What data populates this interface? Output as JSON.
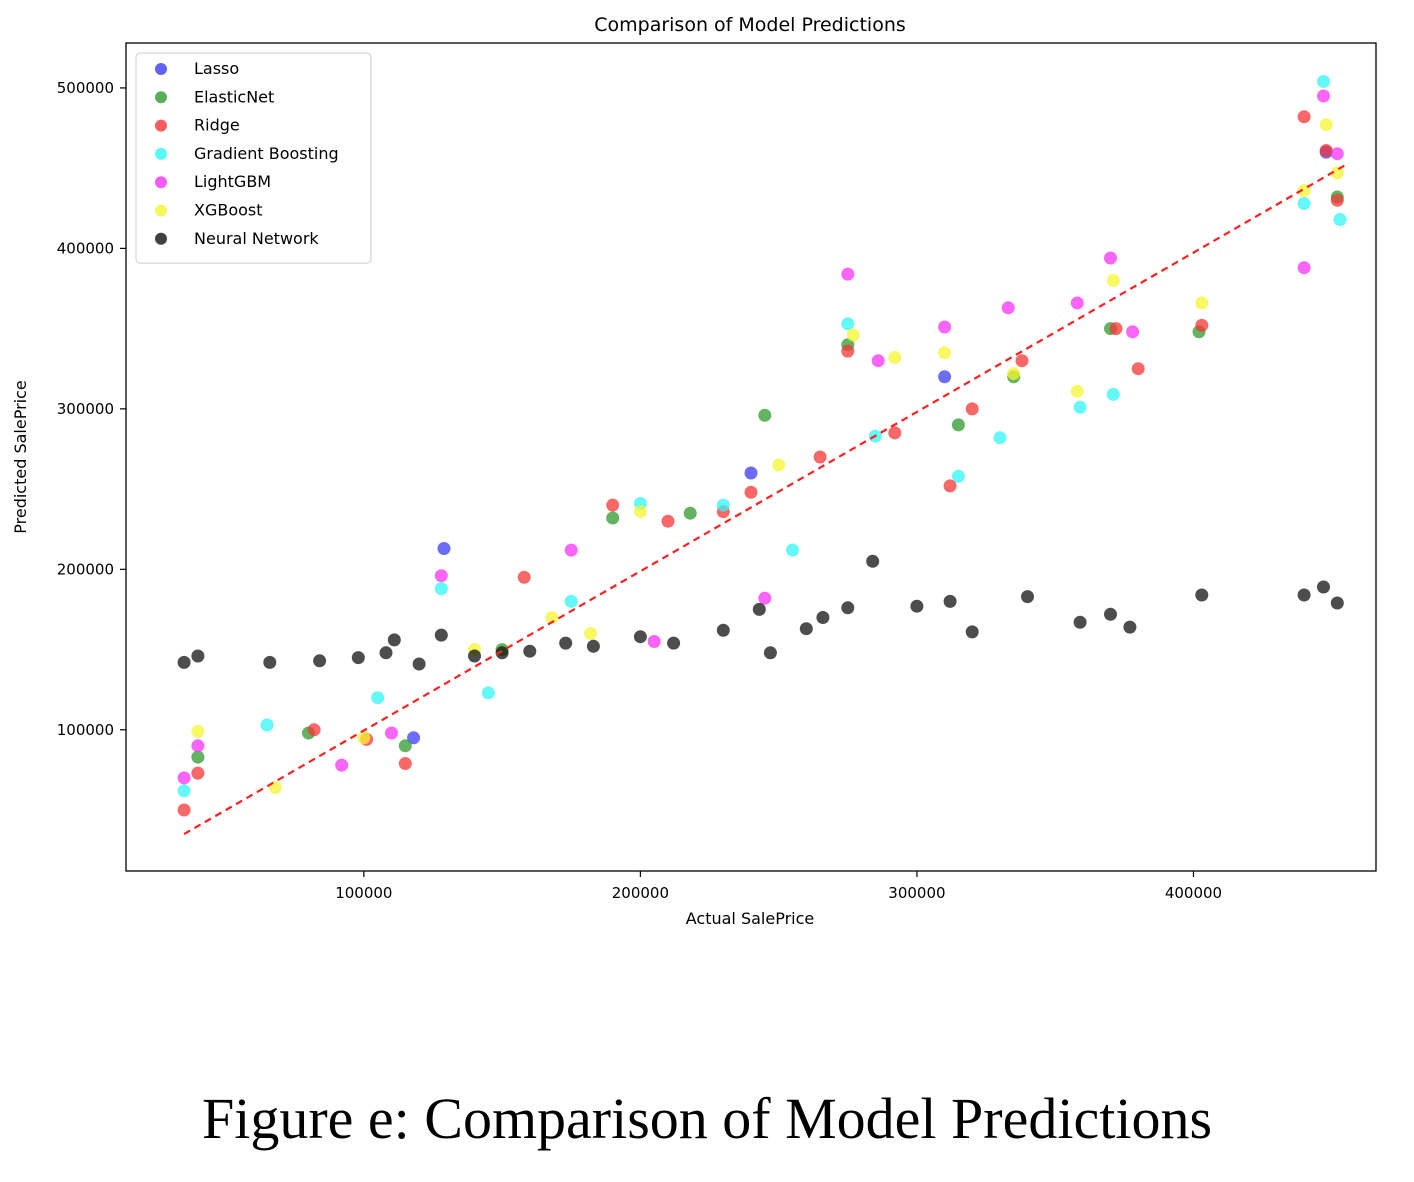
{
  "caption": "Figure e: Comparison of Model Predictions",
  "chart_data": {
    "type": "scatter",
    "title": "Comparison of Model Predictions",
    "xlabel": "Actual SalePrice",
    "ylabel": "Predicted SalePrice",
    "xlim": [
      14000,
      466000
    ],
    "ylim": [
      12000,
      528000
    ],
    "xticks": [
      100000,
      200000,
      300000,
      400000
    ],
    "yticks": [
      100000,
      200000,
      300000,
      400000,
      500000
    ],
    "grid": false,
    "legend_position": "top-left",
    "reference_line": {
      "style": "dashed",
      "color": "#ff1f1f",
      "x": [
        35000,
        455000
      ],
      "y": [
        35000,
        452000
      ]
    },
    "series": [
      {
        "name": "Lasso",
        "color": "#3b3bf5",
        "points": [
          [
            129000,
            213000
          ],
          [
            118000,
            95000
          ],
          [
            240000,
            260000
          ],
          [
            310000,
            320000
          ],
          [
            448000,
            460000
          ]
        ]
      },
      {
        "name": "ElasticNet",
        "color": "#2f9a2f",
        "points": [
          [
            40000,
            83000
          ],
          [
            80000,
            98000
          ],
          [
            115000,
            90000
          ],
          [
            150000,
            150000
          ],
          [
            190000,
            232000
          ],
          [
            218000,
            235000
          ],
          [
            245000,
            296000
          ],
          [
            275000,
            340000
          ],
          [
            315000,
            290000
          ],
          [
            335000,
            320000
          ],
          [
            370000,
            350000
          ],
          [
            402000,
            348000
          ],
          [
            452000,
            432000
          ]
        ]
      },
      {
        "name": "Ridge",
        "color": "#f53535",
        "points": [
          [
            35000,
            50000
          ],
          [
            40000,
            73000
          ],
          [
            82000,
            100000
          ],
          [
            101000,
            94000
          ],
          [
            115000,
            79000
          ],
          [
            158000,
            195000
          ],
          [
            190000,
            240000
          ],
          [
            210000,
            230000
          ],
          [
            230000,
            236000
          ],
          [
            240000,
            248000
          ],
          [
            265000,
            270000
          ],
          [
            275000,
            336000
          ],
          [
            292000,
            285000
          ],
          [
            312000,
            252000
          ],
          [
            320000,
            300000
          ],
          [
            338000,
            330000
          ],
          [
            372000,
            350000
          ],
          [
            380000,
            325000
          ],
          [
            403000,
            352000
          ],
          [
            440000,
            482000
          ],
          [
            448000,
            461000
          ],
          [
            452000,
            430000
          ]
        ]
      },
      {
        "name": "Gradient Boosting",
        "color": "#31f5f5",
        "points": [
          [
            35000,
            62000
          ],
          [
            65000,
            103000
          ],
          [
            105000,
            120000
          ],
          [
            128000,
            188000
          ],
          [
            145000,
            123000
          ],
          [
            175000,
            180000
          ],
          [
            200000,
            241000
          ],
          [
            230000,
            240000
          ],
          [
            255000,
            212000
          ],
          [
            275000,
            353000
          ],
          [
            285000,
            283000
          ],
          [
            315000,
            258000
          ],
          [
            330000,
            282000
          ],
          [
            359000,
            301000
          ],
          [
            371000,
            309000
          ],
          [
            440000,
            428000
          ],
          [
            447000,
            504000
          ],
          [
            453000,
            418000
          ]
        ]
      },
      {
        "name": "LightGBM",
        "color": "#f531f5",
        "points": [
          [
            35000,
            70000
          ],
          [
            40000,
            90000
          ],
          [
            92000,
            78000
          ],
          [
            110000,
            98000
          ],
          [
            128000,
            196000
          ],
          [
            175000,
            212000
          ],
          [
            205000,
            155000
          ],
          [
            245000,
            182000
          ],
          [
            275000,
            384000
          ],
          [
            286000,
            330000
          ],
          [
            310000,
            351000
          ],
          [
            333000,
            363000
          ],
          [
            358000,
            366000
          ],
          [
            370000,
            394000
          ],
          [
            378000,
            348000
          ],
          [
            440000,
            388000
          ],
          [
            447000,
            495000
          ],
          [
            452000,
            459000
          ]
        ]
      },
      {
        "name": "XGBoost",
        "color": "#f5f531",
        "points": [
          [
            40000,
            99000
          ],
          [
            68000,
            64000
          ],
          [
            100000,
            95000
          ],
          [
            140000,
            150000
          ],
          [
            168000,
            170000
          ],
          [
            182000,
            160000
          ],
          [
            200000,
            236000
          ],
          [
            250000,
            265000
          ],
          [
            277000,
            346000
          ],
          [
            292000,
            332000
          ],
          [
            310000,
            335000
          ],
          [
            335000,
            322000
          ],
          [
            358000,
            311000
          ],
          [
            371000,
            380000
          ],
          [
            403000,
            366000
          ],
          [
            440000,
            436000
          ],
          [
            448000,
            477000
          ],
          [
            452000,
            447000
          ]
        ]
      },
      {
        "name": "Neural Network",
        "color": "#111111",
        "points": [
          [
            35000,
            142000
          ],
          [
            40000,
            146000
          ],
          [
            66000,
            142000
          ],
          [
            84000,
            143000
          ],
          [
            98000,
            145000
          ],
          [
            108000,
            148000
          ],
          [
            111000,
            156000
          ],
          [
            120000,
            141000
          ],
          [
            128000,
            159000
          ],
          [
            140000,
            146000
          ],
          [
            150000,
            148000
          ],
          [
            160000,
            149000
          ],
          [
            173000,
            154000
          ],
          [
            183000,
            152000
          ],
          [
            200000,
            158000
          ],
          [
            212000,
            154000
          ],
          [
            230000,
            162000
          ],
          [
            243000,
            175000
          ],
          [
            247000,
            148000
          ],
          [
            260000,
            163000
          ],
          [
            266000,
            170000
          ],
          [
            275000,
            176000
          ],
          [
            284000,
            205000
          ],
          [
            300000,
            177000
          ],
          [
            312000,
            180000
          ],
          [
            320000,
            161000
          ],
          [
            340000,
            183000
          ],
          [
            359000,
            167000
          ],
          [
            370000,
            172000
          ],
          [
            377000,
            164000
          ],
          [
            403000,
            184000
          ],
          [
            440000,
            184000
          ],
          [
            447000,
            189000
          ],
          [
            452000,
            179000
          ]
        ]
      }
    ]
  }
}
